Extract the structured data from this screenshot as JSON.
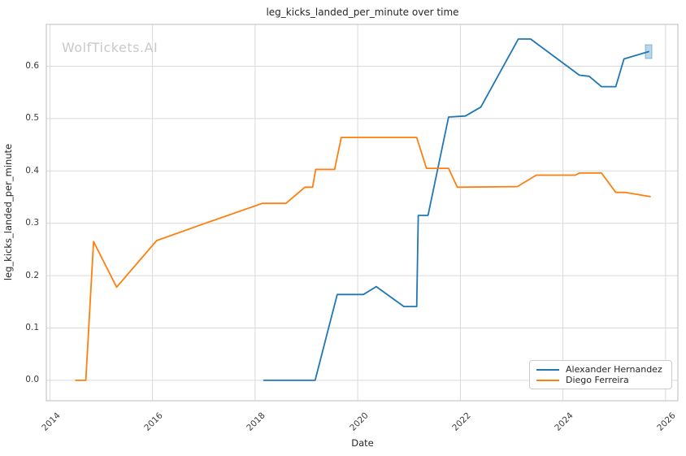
{
  "chart_data": {
    "type": "line",
    "title": "leg_kicks_landed_per_minute over time",
    "xlabel": "Date",
    "ylabel": "leg_kicks_landed_per_minute",
    "watermark": "WolfTickets.AI",
    "grid": true,
    "legend_position": "lower right",
    "xlim": [
      2013.93,
      2026.24
    ],
    "ylim": [
      -0.039,
      0.68
    ],
    "x_ticks": [
      2014,
      2016,
      2018,
      2020,
      2022,
      2024,
      2026
    ],
    "y_ticks": [
      0.0,
      0.1,
      0.2,
      0.3,
      0.4,
      0.5,
      0.6
    ],
    "colors": {
      "grid": "#d9d9d9",
      "spine": "#c7c7c7",
      "tick_text": "#3b3b3b",
      "text": "#262626",
      "watermark": "#c9c9c9"
    },
    "series": [
      {
        "name": "Alexander Hernandez",
        "color": "#1f77b4",
        "points": [
          [
            2018.17,
            0.0
          ],
          [
            2019.17,
            0.0
          ],
          [
            2019.6,
            0.164
          ],
          [
            2020.11,
            0.164
          ],
          [
            2020.36,
            0.179
          ],
          [
            2020.9,
            0.141
          ],
          [
            2021.15,
            0.141
          ],
          [
            2021.18,
            0.315
          ],
          [
            2021.37,
            0.315
          ],
          [
            2021.77,
            0.503
          ],
          [
            2022.1,
            0.505
          ],
          [
            2022.4,
            0.522
          ],
          [
            2023.13,
            0.652
          ],
          [
            2023.37,
            0.652
          ],
          [
            2024.32,
            0.583
          ],
          [
            2024.51,
            0.581
          ],
          [
            2024.75,
            0.561
          ],
          [
            2025.03,
            0.561
          ],
          [
            2025.19,
            0.614
          ],
          [
            2025.67,
            0.628
          ]
        ]
      },
      {
        "name": "Diego Ferreira",
        "color": "#ff7f0e",
        "points": [
          [
            2014.5,
            0.0
          ],
          [
            2014.7,
            0.0
          ],
          [
            2014.85,
            0.265
          ],
          [
            2015.3,
            0.178
          ],
          [
            2016.08,
            0.267
          ],
          [
            2017.0,
            0.299
          ],
          [
            2018.14,
            0.338
          ],
          [
            2018.6,
            0.338
          ],
          [
            2018.97,
            0.369
          ],
          [
            2019.12,
            0.369
          ],
          [
            2019.18,
            0.403
          ],
          [
            2019.55,
            0.403
          ],
          [
            2019.68,
            0.464
          ],
          [
            2021.15,
            0.464
          ],
          [
            2021.34,
            0.405
          ],
          [
            2021.77,
            0.405
          ],
          [
            2021.94,
            0.369
          ],
          [
            2023.11,
            0.37
          ],
          [
            2023.48,
            0.392
          ],
          [
            2024.24,
            0.392
          ],
          [
            2024.32,
            0.396
          ],
          [
            2024.75,
            0.396
          ],
          [
            2025.03,
            0.359
          ],
          [
            2025.22,
            0.359
          ],
          [
            2025.7,
            0.351
          ]
        ]
      }
    ],
    "end_marker": {
      "x": 2025.67,
      "y": 0.628,
      "color": "#1f77b4",
      "opacity": 0.3
    }
  }
}
